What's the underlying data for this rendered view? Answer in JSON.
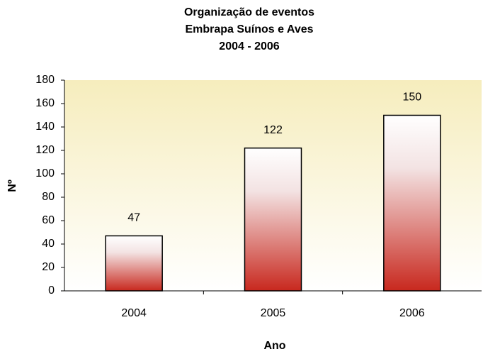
{
  "chart_data": {
    "type": "bar",
    "title": [
      "Organização de eventos",
      "Embrapa Suínos e Aves",
      "2004 - 2006"
    ],
    "x_label": "Ano",
    "y_label": "Nº",
    "categories": [
      "2004",
      "2005",
      "2006"
    ],
    "values": [
      47,
      122,
      150
    ],
    "color": "#c8281e",
    "ylim": [
      0,
      180
    ],
    "yticks": [
      0,
      20,
      40,
      60,
      80,
      100,
      120,
      140,
      160,
      180
    ],
    "grid": false
  }
}
